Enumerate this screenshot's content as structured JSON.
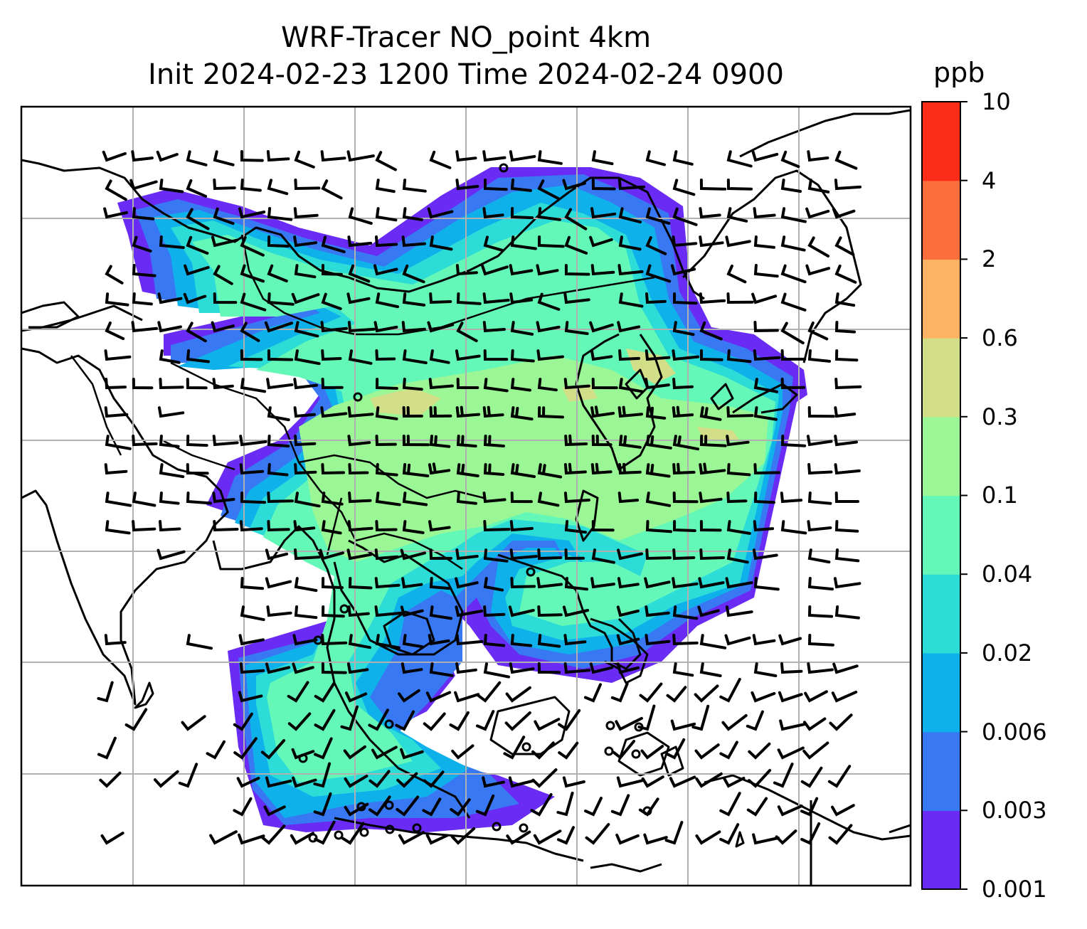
{
  "title": {
    "line1": "WRF-Tracer NO_point 4km",
    "line2": "Init 2024-02-23 1200 Time 2024-02-24 0900"
  },
  "colorbar": {
    "units": "ppb",
    "levels": [
      "0.001",
      "0.003",
      "0.006",
      "0.02",
      "0.04",
      "0.1",
      "0.3",
      "0.6",
      "2",
      "4",
      "10"
    ],
    "colors": [
      "#6a2bf5",
      "#3878f3",
      "#0fb1eb",
      "#2cdcd6",
      "#64f8b8",
      "#9bf795",
      "#d2df88",
      "#fdb264",
      "#fd6e3d",
      "#fb2d18"
    ]
  },
  "map": {
    "gridlines": true,
    "plume_dominant_color": "#64f8b8"
  }
}
